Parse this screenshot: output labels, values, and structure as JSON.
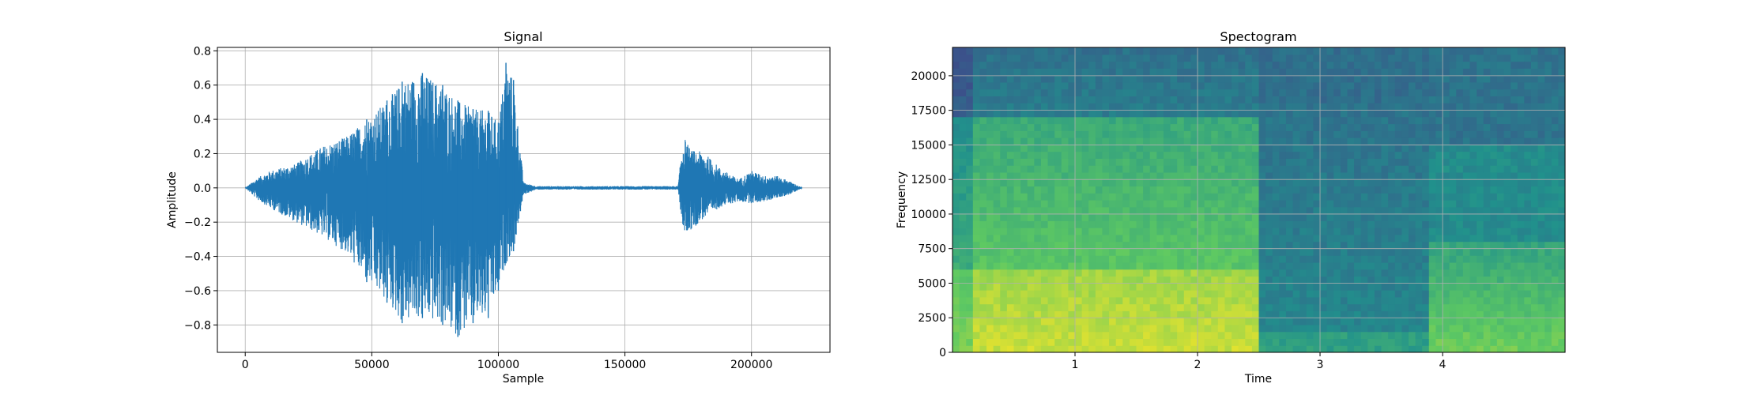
{
  "chart_data": [
    {
      "type": "line",
      "title": "Signal",
      "xlabel": "Sample",
      "ylabel": "Amplitude",
      "xlim": [
        -11000,
        231000
      ],
      "ylim": [
        -0.96,
        0.82
      ],
      "xticks": [
        0,
        50000,
        100000,
        150000,
        200000
      ],
      "xtick_labels": [
        "0",
        "50000",
        "100000",
        "150000",
        "200000"
      ],
      "yticks": [
        0.8,
        0.6,
        0.4,
        0.2,
        0.0,
        -0.2,
        -0.4,
        -0.6,
        -0.8
      ],
      "ytick_labels": [
        "0.8",
        "0.6",
        "0.4",
        "0.2",
        "0.0",
        "−0.2",
        "−0.4",
        "−0.6",
        "−0.8"
      ],
      "grid": true,
      "color": "#1f77b4",
      "series": [
        {
          "x": [
            0,
            5000,
            10000,
            20000,
            30000,
            40000,
            48000,
            56000,
            62000,
            70000,
            78000,
            84000,
            90000,
            96000,
            100000,
            103000,
            106000,
            110000,
            115000,
            150000,
            171000,
            173000,
            176000,
            181000,
            188000,
            195000,
            200000,
            205000,
            210000,
            215000,
            220000
          ],
          "y_max": [
            0.0,
            0.06,
            0.1,
            0.14,
            0.24,
            0.3,
            0.4,
            0.51,
            0.62,
            0.67,
            0.6,
            0.51,
            0.46,
            0.45,
            0.38,
            0.73,
            0.63,
            0.03,
            0.01,
            0.01,
            0.01,
            0.31,
            0.22,
            0.21,
            0.11,
            0.05,
            0.1,
            0.07,
            0.07,
            0.04,
            0.0
          ],
          "y_min": [
            0.0,
            -0.07,
            -0.12,
            -0.2,
            -0.28,
            -0.38,
            -0.55,
            -0.67,
            -0.79,
            -0.76,
            -0.8,
            -0.87,
            -0.79,
            -0.76,
            -0.6,
            -0.44,
            -0.37,
            -0.04,
            -0.01,
            -0.01,
            -0.01,
            -0.27,
            -0.25,
            -0.18,
            -0.11,
            -0.08,
            -0.09,
            -0.08,
            -0.06,
            -0.04,
            0.0
          ]
        }
      ]
    },
    {
      "type": "heatmap",
      "title": "Spectogram",
      "xlabel": "Time",
      "ylabel": "Frequency",
      "xlim": [
        0.0,
        5.0
      ],
      "ylim": [
        0,
        22050
      ],
      "xticks": [
        1,
        2,
        3,
        4
      ],
      "xtick_labels": [
        "1",
        "2",
        "3",
        "4"
      ],
      "yticks": [
        0,
        2500,
        5000,
        7500,
        10000,
        12500,
        15000,
        17500,
        20000
      ],
      "ytick_labels": [
        "0",
        "2500",
        "5000",
        "7500",
        "10000",
        "12500",
        "15000",
        "17500",
        "20000"
      ],
      "grid": true,
      "colormap": "viridis"
    }
  ]
}
